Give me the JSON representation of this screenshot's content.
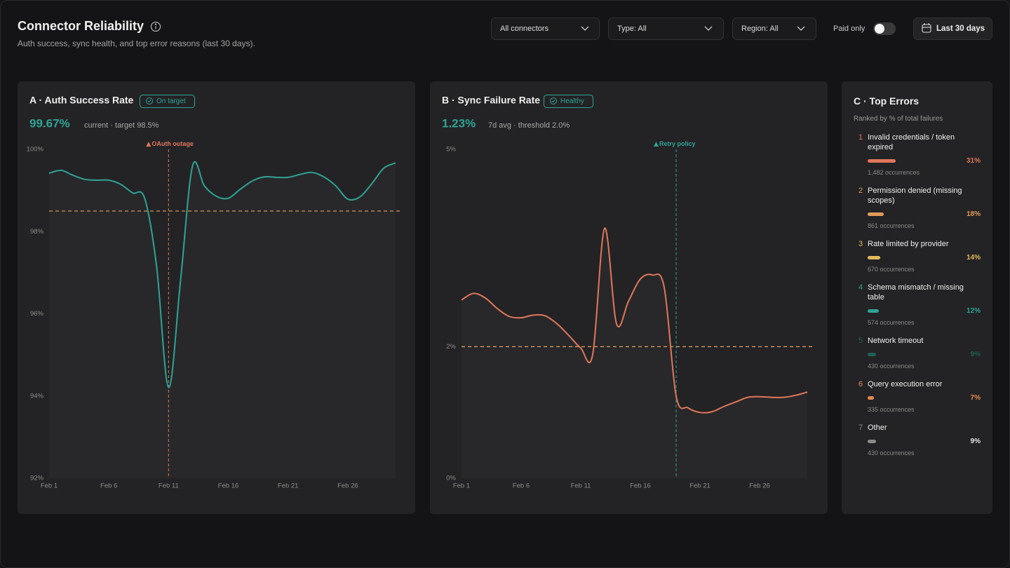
{
  "header": {
    "title": "Connector Reliability",
    "subtitle": "Auth success, sync health, and top error reasons (last 30 days).",
    "filters": [
      "All connectors",
      "Type: All",
      "Region: All"
    ],
    "toggle": "Paid only",
    "date_range": "Last 30 days"
  },
  "chart_data": [
    {
      "type": "line",
      "title": "A · Auth Success Rate",
      "badge": "On target",
      "kpi": "99.67%",
      "kpi_note": "current · target 98.5%",
      "x": [
        1,
        2,
        3,
        4,
        5,
        6,
        7,
        8,
        9,
        10,
        11,
        12,
        13,
        14,
        15,
        16,
        17,
        18,
        19,
        20,
        21,
        22,
        23,
        24,
        25,
        26,
        27,
        28,
        29,
        30
      ],
      "values": [
        99.42,
        99.49,
        99.37,
        99.27,
        99.25,
        99.25,
        99.15,
        98.94,
        98.81,
        97.15,
        94.21,
        96.81,
        99.59,
        99.11,
        98.86,
        98.81,
        99.03,
        99.23,
        99.33,
        99.32,
        99.32,
        99.39,
        99.44,
        99.33,
        99.11,
        98.79,
        98.84,
        99.16,
        99.54,
        99.67
      ],
      "color": "#2fa395",
      "xlim": [
        1,
        30
      ],
      "xticks": [
        {
          "value": 1,
          "label": "Feb 1"
        },
        {
          "value": 6,
          "label": "Feb 6"
        },
        {
          "value": 11,
          "label": "Feb 11"
        },
        {
          "value": 16,
          "label": "Feb 16"
        },
        {
          "value": 21,
          "label": "Feb 21"
        },
        {
          "value": 26,
          "label": "Feb 26"
        }
      ],
      "ylim": [
        92,
        100
      ],
      "yticks": [
        {
          "value": 92,
          "label": "92%"
        },
        {
          "value": 94,
          "label": "94%"
        },
        {
          "value": 96,
          "label": "96%"
        },
        {
          "value": 98,
          "label": "98%"
        },
        {
          "value": 100,
          "label": "100%"
        }
      ],
      "grid": false,
      "target": 98.5,
      "target_color": "#e8a15a",
      "annotation": {
        "text": "OAuth outage",
        "x": 11,
        "color": "#e0775a"
      }
    },
    {
      "type": "line",
      "title": "B · Sync Failure Rate",
      "badge": "Healthy",
      "kpi": "1.23%",
      "kpi_note": "7d avg · threshold 2.0%",
      "x": [
        1,
        2,
        3,
        4,
        5,
        6,
        7,
        8,
        9,
        10,
        11,
        12,
        13,
        14,
        15,
        16,
        17,
        18,
        19,
        20,
        21,
        22,
        23,
        24,
        25,
        26,
        27,
        28,
        29,
        30
      ],
      "values": [
        2.71,
        2.81,
        2.74,
        2.58,
        2.46,
        2.44,
        2.48,
        2.47,
        2.35,
        2.17,
        1.98,
        1.88,
        3.8,
        2.35,
        2.69,
        3.03,
        3.09,
        2.9,
        1.25,
        1.07,
        1.0,
        1.01,
        1.09,
        1.16,
        1.23,
        1.24,
        1.23,
        1.23,
        1.26,
        1.31
      ],
      "color": "#e0775a",
      "xlim": [
        1,
        30
      ],
      "xticks": [
        {
          "value": 1,
          "label": "Feb 1"
        },
        {
          "value": 6,
          "label": "Feb 6"
        },
        {
          "value": 11,
          "label": "Feb 11"
        },
        {
          "value": 16,
          "label": "Feb 16"
        },
        {
          "value": 21,
          "label": "Feb 21"
        },
        {
          "value": 26,
          "label": "Feb 26"
        }
      ],
      "ylim": [
        0,
        5
      ],
      "yticks": [
        {
          "value": 0,
          "label": "0%"
        },
        {
          "value": 2,
          "label": "2%"
        },
        {
          "value": 5,
          "label": "5%"
        }
      ],
      "grid": false,
      "target": 2,
      "target_color": "#e8a15a",
      "annotation": {
        "text": "Retry policy",
        "x": 19,
        "color": "#2fa395"
      }
    }
  ],
  "top_errors": {
    "title": "C · Top Errors",
    "subtitle": "Ranked by % of total failures",
    "items": [
      {
        "rank": 1,
        "label": "Invalid credentials / token expired",
        "value": 31,
        "value_label": "31%",
        "occurrences": "1,482 occurrences",
        "color": "#e0775a"
      },
      {
        "rank": 2,
        "label": "Permission denied (missing scopes)",
        "value": 18,
        "value_label": "18%",
        "occurrences": "861 occurrences",
        "color": "#e59a5a"
      },
      {
        "rank": 3,
        "label": "Rate limited by provider",
        "value": 14,
        "value_label": "14%",
        "occurrences": "670 occurrences",
        "color": "#e3b95a"
      },
      {
        "rank": 4,
        "label": "Schema mismatch / missing table",
        "value": 12,
        "value_label": "12%",
        "occurrences": "574 occurrences",
        "color": "#2fa395"
      },
      {
        "rank": 5,
        "label": "Network timeout",
        "value": 9,
        "value_label": "9%",
        "occurrences": "430 occurrences",
        "color": "#1f5e56"
      },
      {
        "rank": 6,
        "label": "Query execution error",
        "value": 7,
        "value_label": "7%",
        "occurrences": "335 occurrences",
        "color": "#e8894f"
      },
      {
        "rank": 7,
        "label": "Other",
        "value": 9,
        "value_label": "9%",
        "occurrences": "430 occurrences",
        "color": "#8a8a8a"
      }
    ]
  }
}
